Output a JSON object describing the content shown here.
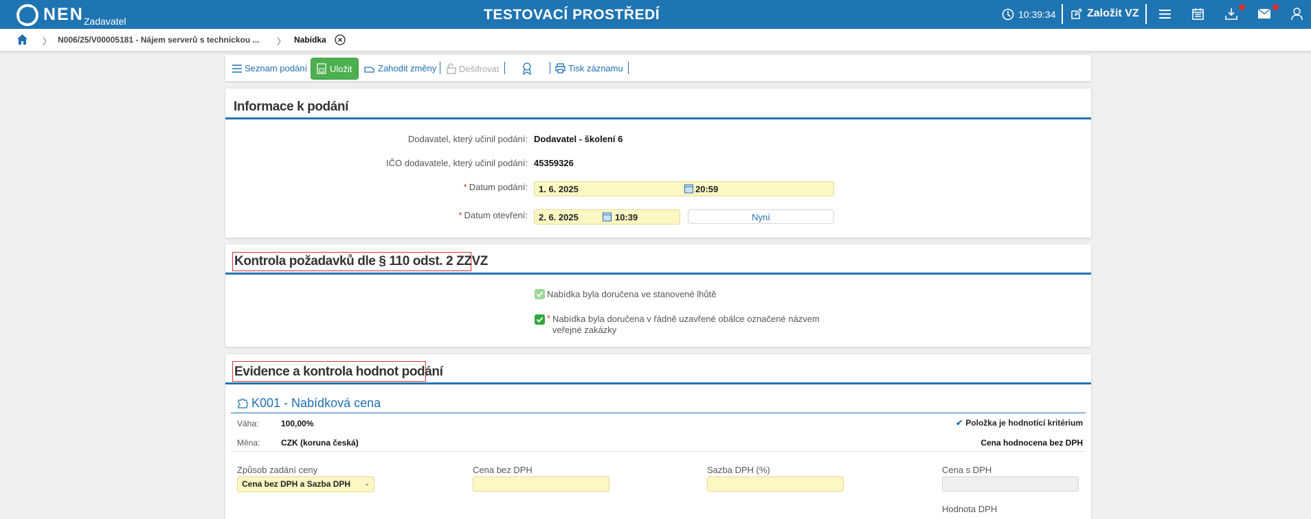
{
  "header": {
    "logo": "NEN",
    "role": "Zadavatel",
    "title": "TESTOVACÍ PROSTŘEDÍ",
    "time": "10:39:34",
    "create_label": "Založit VZ",
    "accent": "#1f74b2",
    "icons": [
      "clock-icon",
      "edit-icon",
      "menu-icon",
      "calendar-icon",
      "download-icon",
      "mail-icon",
      "user-icon"
    ]
  },
  "breadcrumb": {
    "items": [
      "N006/25/V00005181 - Nájem serverů s technickou ...",
      "Nabídka"
    ]
  },
  "toolbar": {
    "list": "Seznam podání",
    "save": "Uložit",
    "discard": "Zahodit změny",
    "decrypt": "Dešifrovat",
    "print": "Tisk záznamu"
  },
  "info": {
    "title": "Informace k podání",
    "supplier_label": "Dodavatel, který učinil podání:",
    "supplier": "Dodavatel - školení 6",
    "ico_label": "IČO dodavatele, který učinil podání:",
    "ico": "45359326",
    "submitted_label": "Datum podání:",
    "submitted_date": "1. 6. 2025",
    "submitted_time": "20:59",
    "opened_label": "Datum otevření:",
    "opened_date": "2. 6. 2025",
    "opened_time": "10:39",
    "now": "Nyní",
    "required_mark": "*"
  },
  "control": {
    "title": "Kontrola požadavků dle § 110 odst. 2 ZZVZ",
    "check1": "Nabídka byla doručena ve stanovené lhůtě",
    "check2_line1": "Nabídka byla doručena v řádně uzavřené obálce označené názvem",
    "check2_line2": "veřejné zakázky",
    "check1_checked": true,
    "check2_checked": true
  },
  "evidence": {
    "title": "Evidence a kontrola hodnot podání",
    "criterion": "K001 - Nabídková cena",
    "weight_label": "Váha:",
    "weight": "100,00%",
    "currency_label": "Měna:",
    "currency": "CZK (koruna česká)",
    "is_criterion": "Položka je hodnotící kritérium",
    "evaluated": "Cena hodnocena bez DPH",
    "mode_label": "Způsob zadání ceny",
    "mode": "Cena bez DPH a Sazba DPH",
    "net_label": "Cena bez DPH",
    "net": "",
    "vat_rate_label": "Sazba DPH (%)",
    "vat_rate": "",
    "gross_label": "Cena s DPH",
    "gross": "",
    "vat_label": "Hodnota DPH"
  }
}
